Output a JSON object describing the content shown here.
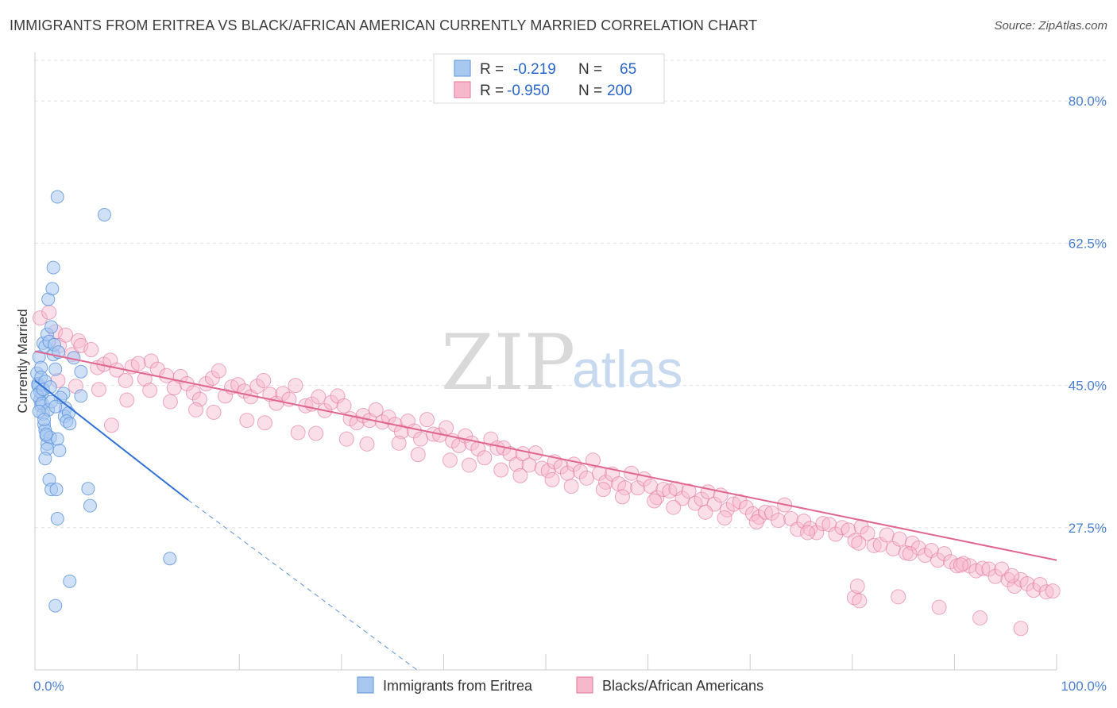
{
  "title": "IMMIGRANTS FROM ERITREA VS BLACK/AFRICAN AMERICAN CURRENTLY MARRIED CORRELATION CHART",
  "source": "Source: ZipAtlas.com",
  "watermark": {
    "zip": "ZIP",
    "atlas": "atlas"
  },
  "legend": {
    "rows": [
      {
        "r_label": "R =",
        "r_value": "-0.219",
        "n_label": "N =",
        "n_value": "65",
        "color": "#a9c8f0"
      },
      {
        "r_label": "R =",
        "r_value": "-0.950",
        "n_label": "N =",
        "n_value": "200",
        "color": "#f6b8cb"
      }
    ]
  },
  "bottom_legend": [
    "Immigrants from Eritrea",
    "Blacks/African Americans"
  ],
  "chart_data": {
    "type": "scatter",
    "title": "IMMIGRANTS FROM ERITREA VS BLACK/AFRICAN AMERICAN CURRENTLY MARRIED CORRELATION CHART",
    "xlabel": "",
    "ylabel": "Currently Married",
    "xlim": [
      0,
      100
    ],
    "ylim": [
      10,
      85
    ],
    "x_tick_labels": [
      "0.0%",
      "100.0%"
    ],
    "y_ticks": [
      27.5,
      45.0,
      62.5,
      80.0
    ],
    "y_tick_labels": [
      "27.5%",
      "45.0%",
      "62.5%",
      "80.0%"
    ],
    "grid": true,
    "legend_position": "top-center",
    "series": [
      {
        "name": "Immigrants from Eritrea",
        "color": "#5b93dd",
        "fill": "#a9c8f0",
        "trend": {
          "x0": 0,
          "y0": 45.6,
          "x1": 15,
          "y1": 30.9,
          "dashed_to_x": 37.4,
          "dashed_to_y": 10
        },
        "points": [
          [
            0.2,
            46.5
          ],
          [
            0.3,
            45.2
          ],
          [
            0.4,
            44.8
          ],
          [
            0.5,
            43.2
          ],
          [
            0.6,
            42.5
          ],
          [
            0.7,
            44.0
          ],
          [
            0.8,
            41.5
          ],
          [
            0.9,
            40.2
          ],
          [
            1.0,
            39.5
          ],
          [
            1.1,
            38.8
          ],
          [
            1.2,
            37.8
          ],
          [
            0.4,
            48.5
          ],
          [
            0.6,
            47.2
          ],
          [
            0.8,
            50.2
          ],
          [
            1.0,
            49.8
          ],
          [
            1.2,
            51.3
          ],
          [
            1.4,
            50.4
          ],
          [
            1.8,
            48.8
          ],
          [
            2.0,
            47.0
          ],
          [
            1.6,
            52.2
          ],
          [
            1.3,
            55.6
          ],
          [
            1.7,
            56.9
          ],
          [
            1.8,
            59.5
          ],
          [
            2.2,
            68.2
          ],
          [
            6.8,
            66.0
          ],
          [
            2.8,
            44.0
          ],
          [
            2.5,
            43.5
          ],
          [
            3.0,
            42.2
          ],
          [
            2.9,
            41.2
          ],
          [
            3.3,
            41.6
          ],
          [
            3.1,
            40.6
          ],
          [
            3.4,
            40.3
          ],
          [
            1.5,
            38.6
          ],
          [
            2.2,
            38.4
          ],
          [
            1.2,
            37.2
          ],
          [
            2.4,
            37.0
          ],
          [
            1.0,
            36.0
          ],
          [
            1.4,
            33.4
          ],
          [
            1.6,
            32.2
          ],
          [
            2.1,
            32.2
          ],
          [
            5.2,
            32.3
          ],
          [
            5.4,
            30.2
          ],
          [
            2.2,
            28.6
          ],
          [
            13.2,
            23.7
          ],
          [
            3.4,
            20.9
          ],
          [
            2.0,
            17.9
          ],
          [
            4.5,
            43.7
          ],
          [
            3.8,
            48.4
          ],
          [
            4.5,
            46.7
          ],
          [
            0.3,
            45.0
          ],
          [
            0.5,
            44.2
          ],
          [
            0.2,
            43.8
          ],
          [
            0.7,
            42.8
          ],
          [
            1.3,
            42.0
          ],
          [
            0.4,
            41.8
          ],
          [
            0.9,
            40.8
          ],
          [
            1.1,
            39.0
          ],
          [
            1.6,
            43.0
          ],
          [
            2.0,
            42.4
          ],
          [
            0.6,
            46.0
          ],
          [
            1.9,
            50.0
          ],
          [
            2.3,
            49.1
          ],
          [
            1.0,
            45.5
          ],
          [
            0.8,
            44.5
          ],
          [
            1.5,
            44.8
          ]
        ]
      },
      {
        "name": "Blacks/African Americans",
        "color": "#e2739a",
        "fill": "#f6b8cb",
        "trend": {
          "x0": 0,
          "y0": 49.2,
          "x1": 100,
          "y1": 23.5
        },
        "points": [
          [
            0.4,
            53.3
          ],
          [
            1.1,
            54.0
          ],
          [
            1.6,
            51.6
          ],
          [
            1.9,
            49.9
          ],
          [
            2.4,
            51.2
          ],
          [
            2.9,
            48.8
          ],
          [
            3.4,
            50.5
          ],
          [
            3.6,
            49.9
          ],
          [
            4.4,
            49.4
          ],
          [
            4.9,
            47.2
          ],
          [
            5.4,
            47.6
          ],
          [
            5.9,
            48.1
          ],
          [
            6.4,
            46.9
          ],
          [
            7.1,
            45.6
          ],
          [
            7.6,
            47.3
          ],
          [
            8.1,
            47.7
          ],
          [
            8.6,
            45.8
          ],
          [
            9.1,
            48.0
          ],
          [
            9.6,
            47.0
          ],
          [
            10.3,
            46.2
          ],
          [
            10.9,
            44.7
          ],
          [
            11.4,
            46.1
          ],
          [
            11.9,
            45.2
          ],
          [
            12.4,
            44.1
          ],
          [
            12.9,
            43.3
          ],
          [
            13.4,
            45.2
          ],
          [
            13.9,
            45.9
          ],
          [
            14.4,
            46.8
          ],
          [
            14.9,
            43.7
          ],
          [
            15.4,
            44.8
          ],
          [
            15.9,
            45.1
          ],
          [
            16.4,
            44.3
          ],
          [
            16.9,
            43.6
          ],
          [
            17.4,
            44.9
          ],
          [
            17.9,
            45.6
          ],
          [
            18.4,
            43.9
          ],
          [
            18.9,
            42.8
          ],
          [
            19.4,
            44.0
          ],
          [
            19.9,
            43.3
          ],
          [
            20.4,
            45.0
          ],
          [
            21.2,
            42.5
          ],
          [
            21.7,
            42.7
          ],
          [
            22.2,
            43.6
          ],
          [
            22.7,
            41.9
          ],
          [
            23.2,
            42.9
          ],
          [
            23.7,
            43.7
          ],
          [
            24.2,
            42.5
          ],
          [
            24.7,
            40.9
          ],
          [
            25.2,
            40.4
          ],
          [
            25.7,
            41.3
          ],
          [
            26.2,
            40.7
          ],
          [
            26.7,
            42.0
          ],
          [
            27.2,
            40.5
          ],
          [
            27.7,
            41.1
          ],
          [
            28.2,
            40.2
          ],
          [
            28.7,
            39.3
          ],
          [
            29.2,
            40.6
          ],
          [
            29.7,
            39.4
          ],
          [
            30.2,
            38.4
          ],
          [
            30.7,
            40.8
          ],
          [
            31.2,
            39.0
          ],
          [
            31.7,
            38.9
          ],
          [
            32.2,
            39.8
          ],
          [
            32.7,
            38.2
          ],
          [
            33.2,
            37.6
          ],
          [
            33.7,
            38.8
          ],
          [
            34.2,
            37.9
          ],
          [
            34.7,
            37.2
          ],
          [
            35.2,
            36.1
          ],
          [
            35.7,
            38.4
          ],
          [
            36.2,
            37.3
          ],
          [
            36.7,
            37.3
          ],
          [
            37.2,
            36.6
          ],
          [
            37.7,
            35.3
          ],
          [
            38.2,
            36.6
          ],
          [
            38.7,
            35.2
          ],
          [
            39.2,
            36.7
          ],
          [
            39.7,
            34.8
          ],
          [
            40.2,
            34.5
          ],
          [
            40.7,
            35.6
          ],
          [
            41.2,
            35.0
          ],
          [
            41.7,
            34.2
          ],
          [
            42.2,
            35.3
          ],
          [
            42.7,
            34.4
          ],
          [
            43.2,
            33.6
          ],
          [
            43.7,
            35.8
          ],
          [
            44.2,
            34.2
          ],
          [
            44.7,
            33.1
          ],
          [
            45.2,
            34.1
          ],
          [
            45.7,
            32.9
          ],
          [
            46.2,
            32.4
          ],
          [
            46.7,
            34.2
          ],
          [
            47.2,
            32.4
          ],
          [
            47.7,
            33.5
          ],
          [
            48.2,
            32.6
          ],
          [
            48.7,
            31.2
          ],
          [
            49.2,
            32.2
          ],
          [
            49.7,
            32.0
          ],
          [
            50.2,
            32.3
          ],
          [
            50.7,
            31.1
          ],
          [
            51.2,
            32.0
          ],
          [
            51.7,
            30.5
          ],
          [
            52.2,
            31.0
          ],
          [
            52.7,
            31.9
          ],
          [
            53.2,
            30.4
          ],
          [
            53.7,
            31.5
          ],
          [
            54.2,
            29.7
          ],
          [
            54.7,
            30.4
          ],
          [
            55.2,
            30.7
          ],
          [
            55.7,
            30.0
          ],
          [
            56.2,
            29.2
          ],
          [
            56.7,
            28.8
          ],
          [
            57.2,
            29.4
          ],
          [
            57.7,
            29.3
          ],
          [
            58.2,
            28.4
          ],
          [
            58.7,
            30.3
          ],
          [
            59.2,
            28.6
          ],
          [
            59.7,
            27.3
          ],
          [
            60.2,
            28.3
          ],
          [
            60.7,
            27.4
          ],
          [
            61.2,
            26.9
          ],
          [
            61.7,
            28.0
          ],
          [
            62.2,
            27.9
          ],
          [
            62.7,
            26.7
          ],
          [
            63.2,
            27.5
          ],
          [
            63.7,
            27.2
          ],
          [
            64.2,
            25.9
          ],
          [
            64.7,
            27.6
          ],
          [
            65.2,
            26.8
          ],
          [
            65.7,
            25.3
          ],
          [
            66.2,
            25.4
          ],
          [
            66.7,
            26.6
          ],
          [
            67.2,
            24.9
          ],
          [
            67.7,
            26.1
          ],
          [
            68.2,
            24.4
          ],
          [
            68.7,
            25.6
          ],
          [
            69.2,
            25.0
          ],
          [
            69.7,
            24.1
          ],
          [
            70.2,
            24.7
          ],
          [
            70.7,
            23.5
          ],
          [
            71.2,
            24.3
          ],
          [
            71.7,
            23.3
          ],
          [
            72.2,
            22.8
          ],
          [
            72.7,
            23.1
          ],
          [
            73.2,
            22.8
          ],
          [
            73.7,
            22.2
          ],
          [
            74.2,
            22.5
          ],
          [
            74.7,
            22.4
          ],
          [
            75.2,
            21.5
          ],
          [
            75.7,
            22.4
          ],
          [
            76.2,
            21.1
          ],
          [
            76.7,
            20.3
          ],
          [
            77.2,
            21.1
          ],
          [
            77.7,
            20.6
          ],
          [
            78.2,
            19.8
          ],
          [
            78.7,
            20.5
          ],
          [
            79.2,
            19.6
          ],
          [
            79.7,
            19.7
          ],
          [
            80.2,
            18.9
          ],
          [
            80.7,
            18.5
          ],
          [
            6.0,
            40.1
          ],
          [
            9.0,
            44.4
          ],
          [
            12.6,
            42.0
          ],
          [
            16.6,
            40.7
          ],
          [
            20.6,
            39.2
          ],
          [
            24.4,
            38.4
          ],
          [
            28.5,
            37.9
          ],
          [
            32.5,
            35.8
          ],
          [
            36.5,
            34.6
          ],
          [
            40.5,
            33.4
          ],
          [
            44.5,
            32.2
          ],
          [
            48.5,
            30.8
          ],
          [
            52.5,
            29.4
          ],
          [
            56.5,
            28.2
          ],
          [
            60.5,
            26.9
          ],
          [
            64.5,
            25.6
          ],
          [
            68.5,
            24.3
          ],
          [
            72.5,
            22.9
          ],
          [
            76.5,
            21.6
          ],
          [
            80.5,
            20.3
          ],
          [
            84.5,
            19.0
          ],
          [
            88.5,
            17.7
          ],
          [
            92.5,
            16.4
          ],
          [
            96.5,
            15.1
          ],
          [
            1.8,
            45.6
          ],
          [
            3.2,
            44.9
          ],
          [
            5.0,
            44.5
          ],
          [
            7.2,
            43.2
          ],
          [
            10.6,
            43.0
          ],
          [
            14.0,
            41.7
          ],
          [
            18.0,
            40.4
          ],
          [
            22.0,
            39.1
          ],
          [
            26.0,
            37.8
          ],
          [
            30.0,
            36.5
          ],
          [
            34.0,
            35.2
          ],
          [
            38.0,
            33.9
          ],
          [
            42.0,
            32.6
          ],
          [
            46.0,
            31.3
          ],
          [
            50.0,
            30.0
          ],
          [
            54.0,
            28.7
          ]
        ]
      }
    ]
  }
}
